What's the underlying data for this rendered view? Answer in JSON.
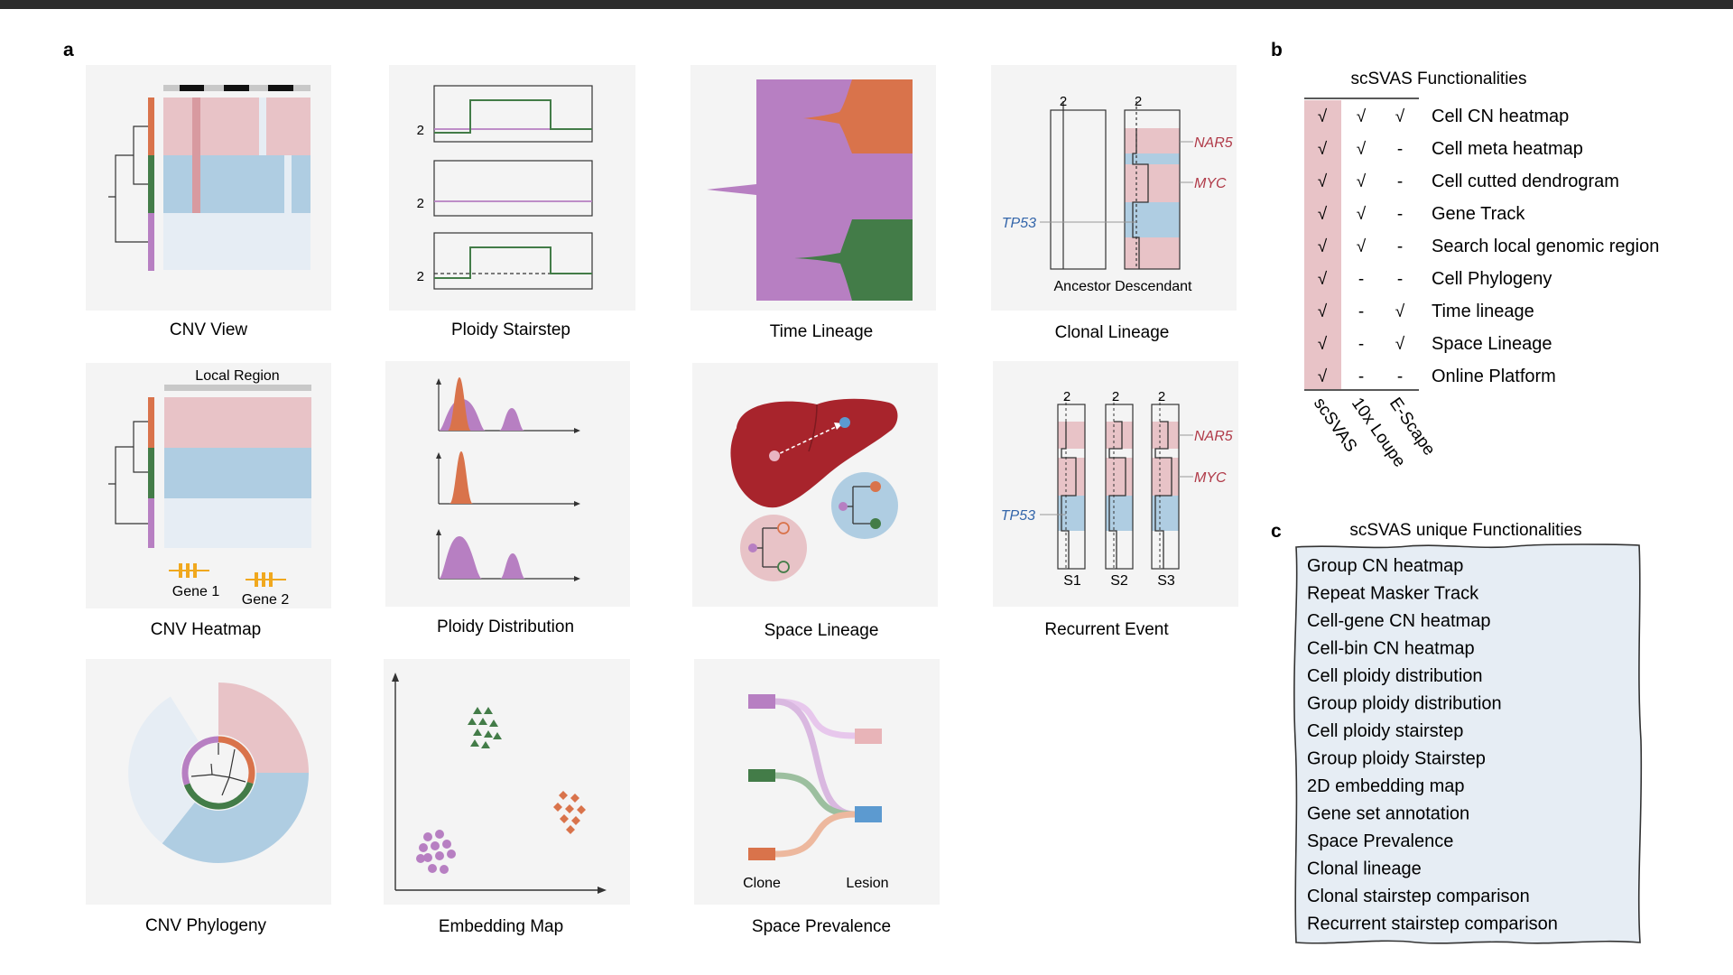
{
  "panel_labels": {
    "a": "a",
    "b": "b",
    "c": "c"
  },
  "colors": {
    "panel_bg": "#f4f4f4",
    "pink": "#e8c3c7",
    "pink_light": "#f0d6d9",
    "blue": "#afcde2",
    "blue_light": "#e6edf4",
    "orange": "#d9734b",
    "green": "#437c48",
    "purple": "#b77fc2",
    "red_text": "#b03a48",
    "blue_text": "#3466aa",
    "liver": "#a8242c",
    "gene_yellow": "#f0a81e"
  },
  "panels": {
    "cnv_view": {
      "caption": "CNV View"
    },
    "ploidy_stairstep": {
      "caption": "Ploidy Stairstep",
      "ploidy_labels": [
        "2",
        "2",
        "2"
      ]
    },
    "time_lineage": {
      "caption": "Time Lineage"
    },
    "clonal_lineage": {
      "caption": "Clonal Lineage",
      "ploidy_labels": [
        "2",
        "2"
      ],
      "genes": [
        "NAR5",
        "MYC",
        "TP53"
      ],
      "bottom_label": "Ancestor Descendant"
    },
    "cnv_heatmap": {
      "caption": "CNV Heatmap",
      "region_label": "Local Region",
      "genes": [
        "Gene 1",
        "Gene 2"
      ]
    },
    "ploidy_distribution": {
      "caption": "Ploidy Distribution"
    },
    "space_lineage": {
      "caption": "Space Lineage"
    },
    "recurrent_event": {
      "caption": "Recurrent Event",
      "ploidy_labels": [
        "2",
        "2",
        "2"
      ],
      "genes": [
        "NAR5",
        "MYC",
        "TP53"
      ],
      "samples": [
        "S1",
        "S2",
        "S3"
      ]
    },
    "cnv_phylogeny": {
      "caption": "CNV Phylogeny"
    },
    "embedding_map": {
      "caption": "Embedding Map"
    },
    "space_prevalence": {
      "caption": "Space Prevalence",
      "left_label": "Clone",
      "right_label": "Lesion"
    }
  },
  "comparison": {
    "title": "scSVAS Functionalities",
    "tools": [
      "scSVAS",
      "10x Loupe",
      "E-Scape"
    ],
    "rows": [
      {
        "feature": "Cell CN heatmap",
        "marks": [
          "√",
          "√",
          "√"
        ]
      },
      {
        "feature": "Cell meta heatmap",
        "marks": [
          "√",
          "√",
          "-"
        ]
      },
      {
        "feature": "Cell cutted dendrogram",
        "marks": [
          "√",
          "√",
          "-"
        ]
      },
      {
        "feature": "Gene Track",
        "marks": [
          "√",
          "√",
          "-"
        ]
      },
      {
        "feature": "Search local genomic region",
        "marks": [
          "√",
          "√",
          "-"
        ]
      },
      {
        "feature": "Cell Phylogeny",
        "marks": [
          "√",
          "-",
          "-"
        ]
      },
      {
        "feature": "Time lineage",
        "marks": [
          "√",
          "-",
          "√"
        ]
      },
      {
        "feature": "Space Lineage",
        "marks": [
          "√",
          "-",
          "√"
        ]
      },
      {
        "feature": "Online Platform",
        "marks": [
          "√",
          "-",
          "-"
        ]
      }
    ]
  },
  "unique": {
    "title": "scSVAS unique Functionalities",
    "items": [
      "Group CN heatmap",
      "Repeat Masker Track",
      "Cell-gene CN heatmap",
      "Cell-bin CN heatmap",
      "Cell ploidy distribution",
      "Group ploidy distribution",
      "Cell ploidy stairstep",
      "Group ploidy Stairstep",
      "2D embedding map",
      "Gene set annotation",
      "Space Prevalence",
      "Clonal lineage",
      "Clonal stairstep comparison",
      "Recurrent stairstep comparison"
    ]
  }
}
